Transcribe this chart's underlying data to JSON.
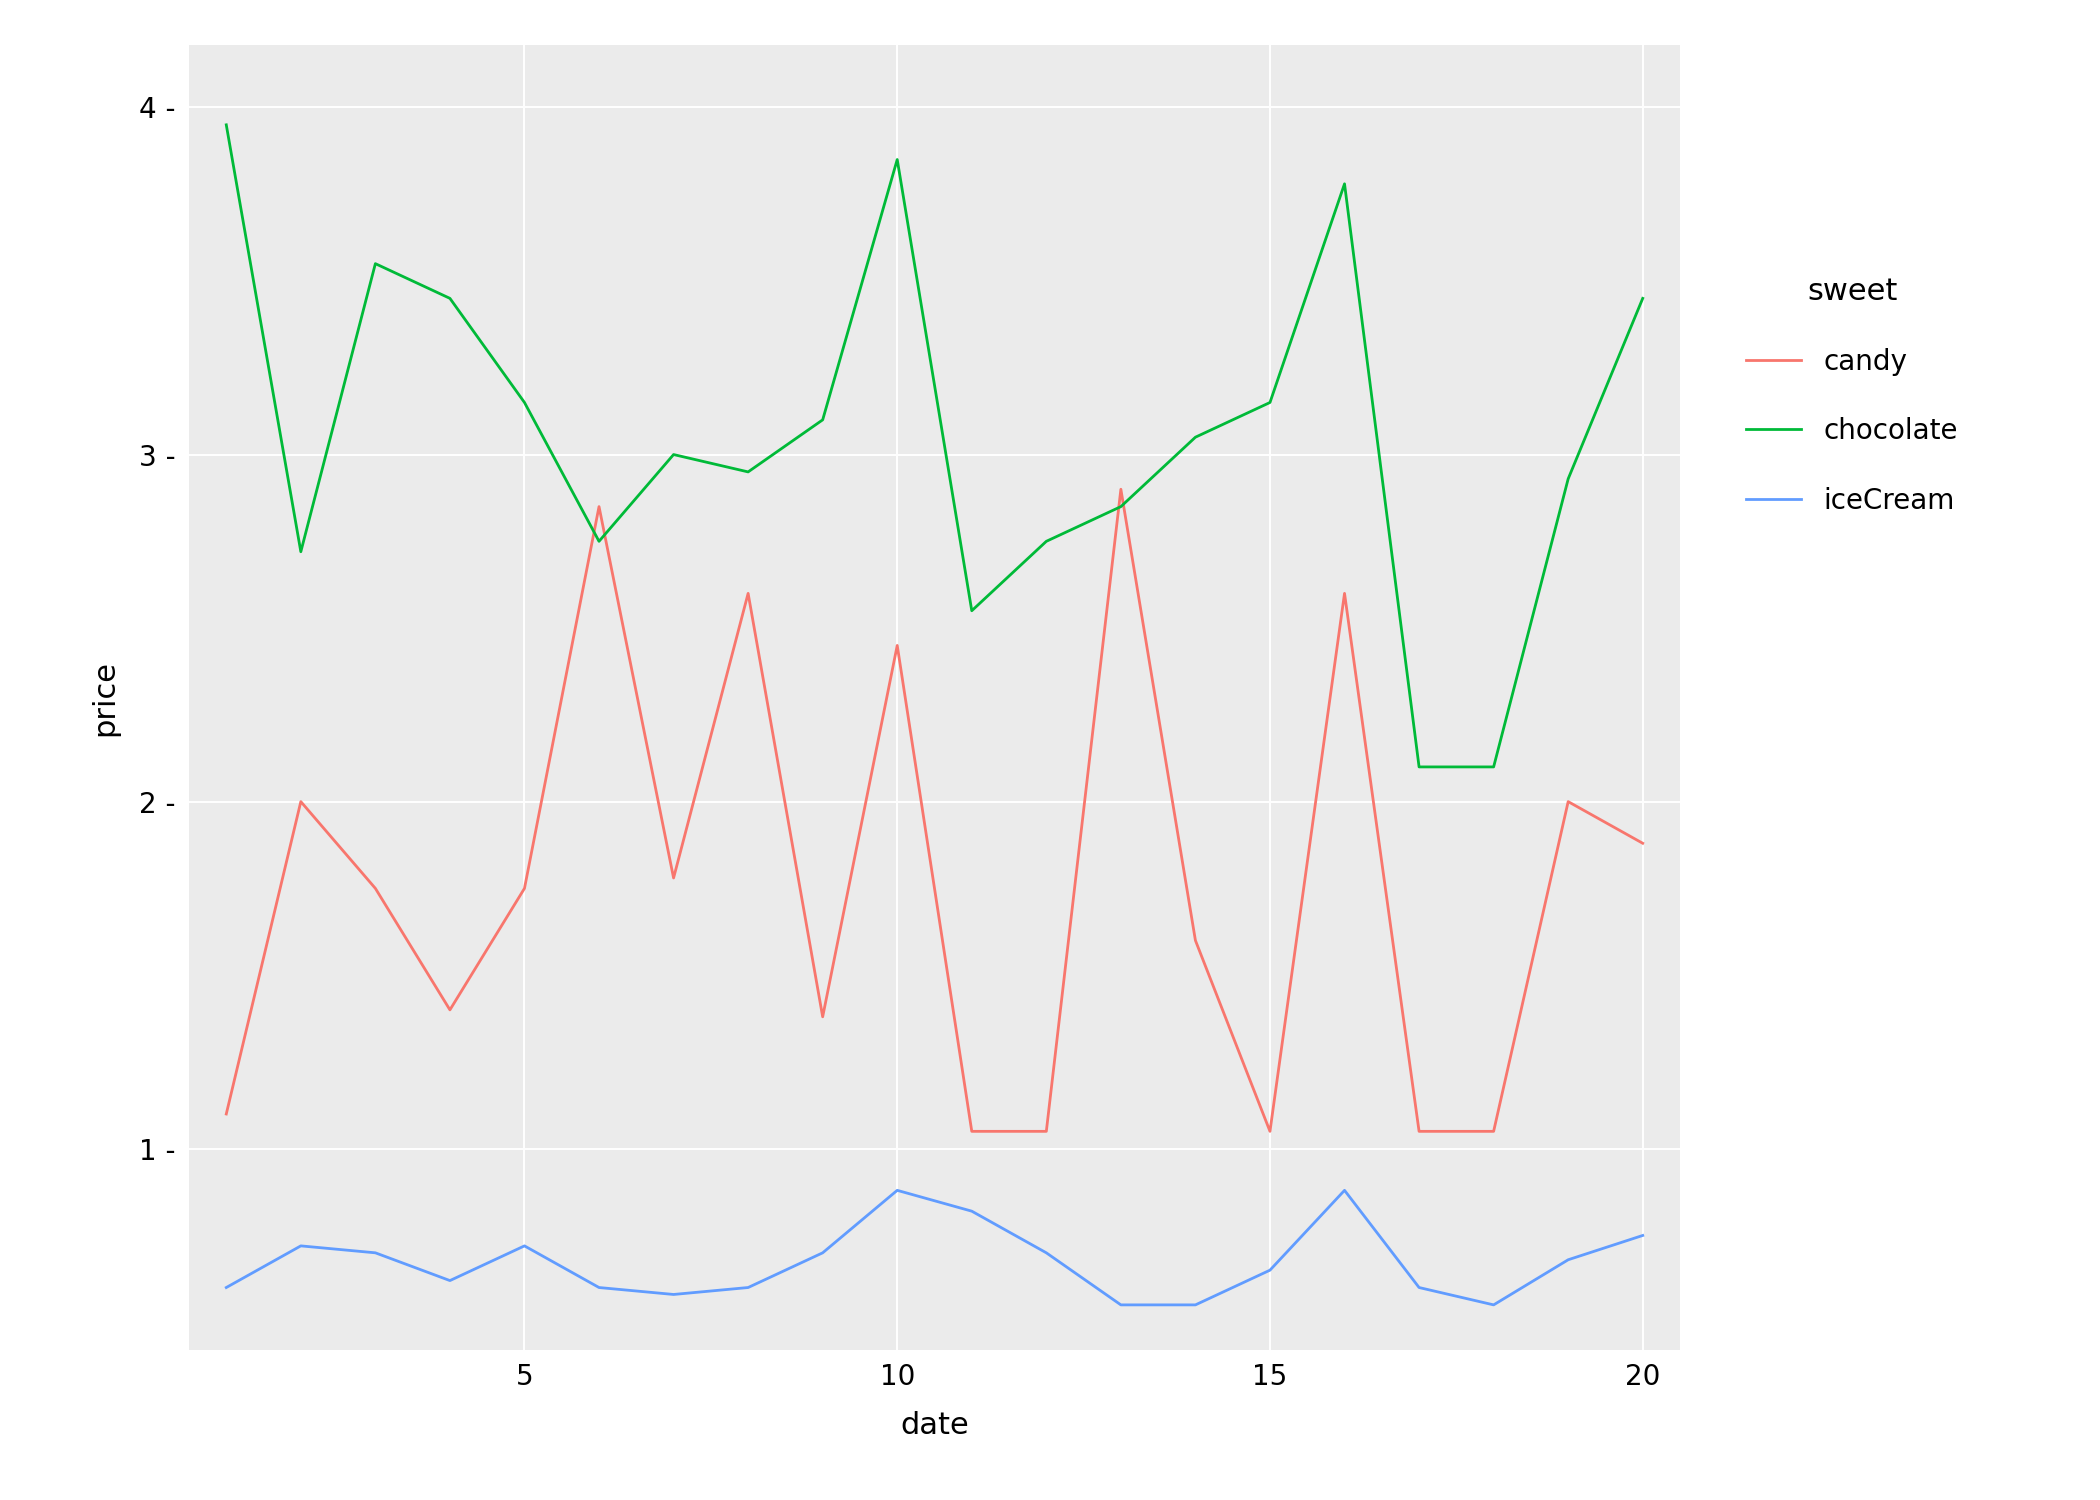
{
  "date": [
    1,
    2,
    3,
    4,
    5,
    6,
    7,
    8,
    9,
    10,
    11,
    12,
    13,
    14,
    15,
    16,
    17,
    18,
    19,
    20
  ],
  "candy": [
    1.1,
    2.0,
    1.75,
    1.4,
    1.75,
    2.85,
    1.78,
    2.6,
    1.38,
    2.45,
    1.05,
    1.05,
    2.9,
    1.6,
    1.05,
    2.6,
    1.05,
    1.05,
    2.0,
    1.88
  ],
  "chocolate": [
    3.95,
    2.72,
    3.55,
    3.45,
    3.15,
    2.75,
    3.0,
    2.95,
    3.1,
    3.85,
    2.55,
    2.75,
    2.85,
    3.05,
    3.15,
    3.78,
    2.1,
    2.1,
    2.93,
    3.45
  ],
  "iceCream": [
    0.6,
    0.72,
    0.7,
    0.62,
    0.72,
    0.6,
    0.58,
    0.6,
    0.7,
    0.88,
    0.82,
    0.7,
    0.55,
    0.55,
    0.65,
    0.88,
    0.6,
    0.55,
    0.68,
    0.75
  ],
  "candy_color": "#F8766D",
  "chocolate_color": "#00BA38",
  "iceCream_color": "#619CFF",
  "fig_bg": "#FFFFFF",
  "panel_bg": "#EBEBEB",
  "grid_color": "#FFFFFF",
  "xlabel": "date",
  "ylabel": "price",
  "legend_title": "sweet",
  "xlim": [
    0.5,
    20.5
  ],
  "ylim": [
    0.42,
    4.18
  ],
  "yticks": [
    1,
    2,
    3,
    4
  ],
  "xticks": [
    5,
    10,
    15,
    20
  ],
  "axis_fontsize": 22,
  "tick_fontsize": 20,
  "legend_fontsize": 20,
  "legend_title_fontsize": 22,
  "line_width": 2.0
}
